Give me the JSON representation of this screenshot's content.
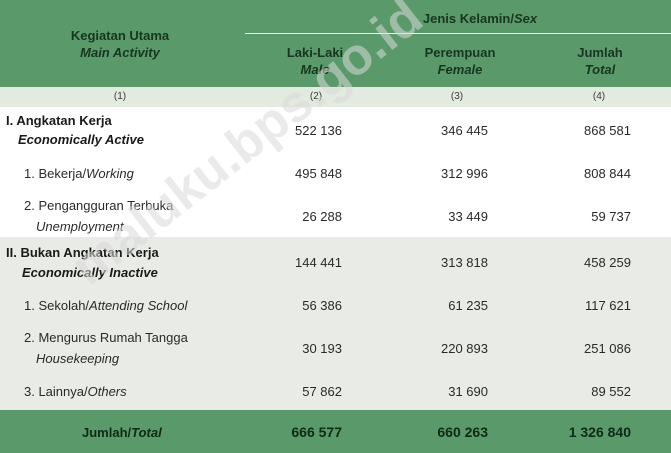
{
  "header": {
    "activity_id": "Kegiatan Utama",
    "activity_en": "Main Activity",
    "sex_id": "Jenis Kelamin/",
    "sex_en": "Sex",
    "male_id": "Laki-Laki",
    "male_en": "Male",
    "female_id": "Perempuan",
    "female_en": "Female",
    "total_id": "Jumlah",
    "total_en": "Total"
  },
  "col_numbers": [
    "(1)",
    "(2)",
    "(3)",
    "(4)"
  ],
  "rows": [
    {
      "label_id": "I. Angkatan Kerja",
      "label_en": "Economically Active",
      "male": "522 136",
      "female": "346 445",
      "total": "868 581"
    },
    {
      "label_id": "1. Bekerja/",
      "label_en": "Working",
      "male": "495 848",
      "female": "312 996",
      "total": "808 844"
    },
    {
      "label_id": "2. Pengangguran Terbuka",
      "label_en": "Unemployment",
      "male": "26 288",
      "female": "33 449",
      "total": "59 737"
    },
    {
      "label_id": "II. Bukan Angkatan Kerja",
      "label_en": "Economically Inactive",
      "male": "144 441",
      "female": "313 818",
      "total": "458 259"
    },
    {
      "label_id": "1. Sekolah/",
      "label_en": "Attending School",
      "male": "56 386",
      "female": "61 235",
      "total": "117 621"
    },
    {
      "label_id": "2. Mengurus Rumah Tangga",
      "label_en": "Housekeeping",
      "male": "30 193",
      "female": "220 893",
      "total": "251 086"
    },
    {
      "label_id": "3. Lainnya/",
      "label_en": "Others",
      "male": "57 862",
      "female": "31 690",
      "total": "89 552"
    }
  ],
  "footer": {
    "label": "Jumlah/",
    "label_en": "Total",
    "male": "666 577",
    "female": "660 263",
    "total": "1 326 840"
  },
  "watermark": "maluku.bps.go.id",
  "colors": {
    "header_green": "#5a9a6a",
    "band_light": "#e9ece6"
  }
}
